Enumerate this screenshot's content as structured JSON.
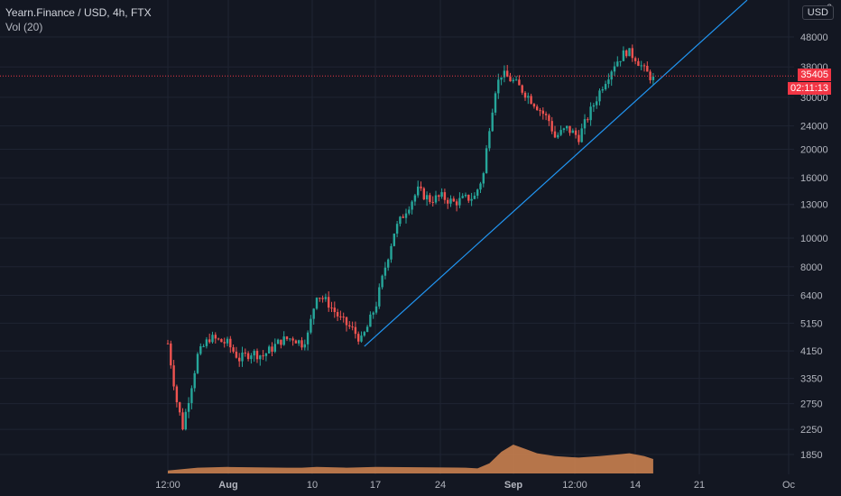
{
  "header": {
    "title": "Yearn.Finance / USD, 4h, FTX",
    "volume_label": "Vol (20)"
  },
  "currency_button": "USD",
  "top_partial_label": "6",
  "price_badge": "35405",
  "countdown_badge": "02:11:13",
  "colors": {
    "background": "#131722",
    "grid": "#1f2433",
    "up": "#26a69a",
    "down": "#ef5350",
    "trendline": "#2196f3",
    "volume": "#c9804f",
    "price_line": "#f23645",
    "text": "#b2b5be"
  },
  "chart_data": {
    "type": "candlestick",
    "log_scale": true,
    "grid": true,
    "ylim": [
      1650,
      64000
    ],
    "y_ticks": [
      48000,
      38000,
      30000,
      24000,
      20000,
      16000,
      13000,
      10000,
      8000,
      6400,
      5150,
      4150,
      3350,
      2750,
      2250,
      1850
    ],
    "x_ticks": [
      "12:00",
      "Aug",
      "10",
      "17",
      "24",
      "Sep",
      "12:00",
      "14",
      "21",
      "Oc"
    ],
    "last_price": 35405,
    "trendline": {
      "start_price": 4300,
      "end_price": 64000
    },
    "price_path": [
      [
        0,
        4400
      ],
      [
        3,
        2800
      ],
      [
        5,
        2300
      ],
      [
        8,
        3200
      ],
      [
        10,
        4000
      ],
      [
        14,
        4600
      ],
      [
        20,
        4400
      ],
      [
        24,
        3900
      ],
      [
        28,
        4100
      ],
      [
        32,
        4000
      ],
      [
        38,
        4500
      ],
      [
        42,
        4600
      ],
      [
        45,
        4400
      ],
      [
        47,
        4700
      ],
      [
        50,
        6500
      ],
      [
        54,
        6000
      ],
      [
        58,
        5300
      ],
      [
        62,
        4900
      ],
      [
        65,
        4500
      ],
      [
        67,
        5000
      ],
      [
        70,
        6000
      ],
      [
        73,
        8000
      ],
      [
        76,
        10500
      ],
      [
        80,
        12500
      ],
      [
        84,
        14500
      ],
      [
        88,
        13500
      ],
      [
        92,
        13800
      ],
      [
        96,
        13200
      ],
      [
        100,
        13600
      ],
      [
        103,
        13800
      ],
      [
        106,
        16500
      ],
      [
        108,
        24000
      ],
      [
        110,
        32000
      ],
      [
        112,
        36000
      ],
      [
        116,
        34000
      ],
      [
        120,
        31000
      ],
      [
        124,
        28000
      ],
      [
        128,
        25000
      ],
      [
        130,
        22000
      ],
      [
        134,
        23500
      ],
      [
        138,
        22000
      ],
      [
        142,
        27000
      ],
      [
        146,
        33000
      ],
      [
        150,
        39000
      ],
      [
        154,
        43000
      ],
      [
        157,
        41000
      ],
      [
        160,
        37000
      ],
      [
        163,
        34500
      ]
    ],
    "volume_profile": [
      [
        0,
        2
      ],
      [
        10,
        4
      ],
      [
        20,
        4.5
      ],
      [
        40,
        4
      ],
      [
        45,
        4
      ],
      [
        50,
        4.5
      ],
      [
        60,
        4
      ],
      [
        70,
        4.5
      ],
      [
        100,
        4
      ],
      [
        104,
        3.5
      ],
      [
        108,
        7
      ],
      [
        112,
        15
      ],
      [
        116,
        20
      ],
      [
        120,
        17
      ],
      [
        124,
        14
      ],
      [
        130,
        12
      ],
      [
        138,
        11
      ],
      [
        145,
        12
      ],
      [
        150,
        13
      ],
      [
        155,
        14
      ],
      [
        160,
        12
      ],
      [
        163,
        10
      ]
    ]
  }
}
